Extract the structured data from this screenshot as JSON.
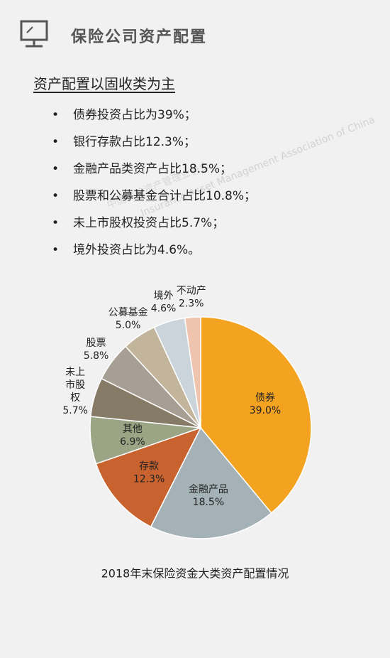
{
  "header": {
    "title": "保险公司资产配置"
  },
  "subtitle": "资产配置以固收类为主",
  "bullets": [
    "债券投资占比为39%；",
    "银行存款占比12.3%；",
    "金融产品类资产占比18.5%；",
    "股票和公募基金合计占比10.8%；",
    "未上市股权投资占比5.7%；",
    "境外投资占比为4.6%。"
  ],
  "watermark": {
    "cn": "中国保险资产管理业协会",
    "en": "Insurance Asset Management Association of China"
  },
  "chart_data": {
    "type": "pie",
    "title": "2018年末保险资金大类资产配置情况",
    "categories": [
      "债券",
      "金融产品",
      "存款",
      "其他",
      "未上市股权",
      "股票",
      "公募基金",
      "境外",
      "不动产"
    ],
    "values": [
      39.0,
      18.5,
      12.3,
      6.9,
      5.7,
      5.8,
      5.0,
      4.6,
      2.3
    ],
    "value_labels": [
      "39.0%",
      "18.5%",
      "12.3%",
      "6.9%",
      "5.7%",
      "5.8%",
      "5.0%",
      "4.6%",
      "2.3%"
    ],
    "colors": [
      "#f4a321",
      "#a4b2b7",
      "#c8622f",
      "#9ba585",
      "#867b67",
      "#a79f94",
      "#c3b59b",
      "#cad4da",
      "#eec4af"
    ]
  }
}
